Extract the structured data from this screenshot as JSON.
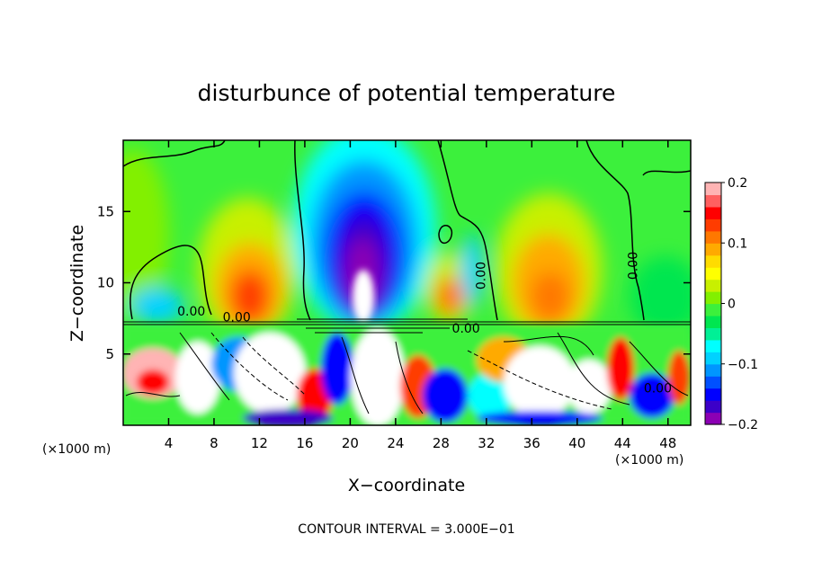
{
  "chart_data": {
    "type": "heatmap",
    "title": "disturbunce of potential temperature",
    "xlabel": "X−coordinate",
    "ylabel": "Z−coordinate",
    "x_unit": "(×1000 m)",
    "z_unit": "(×1000 m)",
    "xlim": [
      0,
      50
    ],
    "ylim": [
      0,
      20
    ],
    "xticks": [
      4,
      8,
      12,
      16,
      20,
      24,
      28,
      32,
      36,
      40,
      44,
      48
    ],
    "xtick_labels": [
      "4",
      "8",
      "12",
      "16",
      "20",
      "24",
      "28",
      "32",
      "36",
      "40",
      "44",
      "48"
    ],
    "yticks": [
      5,
      10,
      15
    ],
    "ytick_labels": [
      "5",
      "10",
      "15"
    ],
    "colorbar": {
      "range": [
        -0.2,
        0.2
      ],
      "tick_values": [
        0.2,
        0.1,
        0,
        -0.1,
        -0.2
      ],
      "tick_labels": [
        "0.2",
        "0.1",
        "0",
        "−0.1",
        "−0.2"
      ],
      "colors": [
        "#8c00b4",
        "#3c00c8",
        "#0000ff",
        "#0050ff",
        "#0096ff",
        "#00d2ff",
        "#00ffff",
        "#00f096",
        "#00e650",
        "#3cf03c",
        "#82f000",
        "#c8f000",
        "#ffff00",
        "#ffdc00",
        "#ffaa00",
        "#ff7800",
        "#ff3c00",
        "#ff0000",
        "#ff6060",
        "#ffb4b4"
      ]
    },
    "contour_labels": [
      {
        "text": "0.00",
        "x": 6,
        "z": 7.7
      },
      {
        "text": "0.00",
        "x": 10,
        "z": 7.3
      },
      {
        "text": "0.00",
        "x": 31.9,
        "z": 10.5
      },
      {
        "text": "0.00",
        "x": 45.3,
        "z": 11.2
      },
      {
        "text": "0.00",
        "x": 30.2,
        "z": 6.5
      },
      {
        "text": "0.00",
        "x": 47.1,
        "z": 2.3
      }
    ],
    "footer": "CONTOUR INTERVAL = 3.000E−01"
  }
}
